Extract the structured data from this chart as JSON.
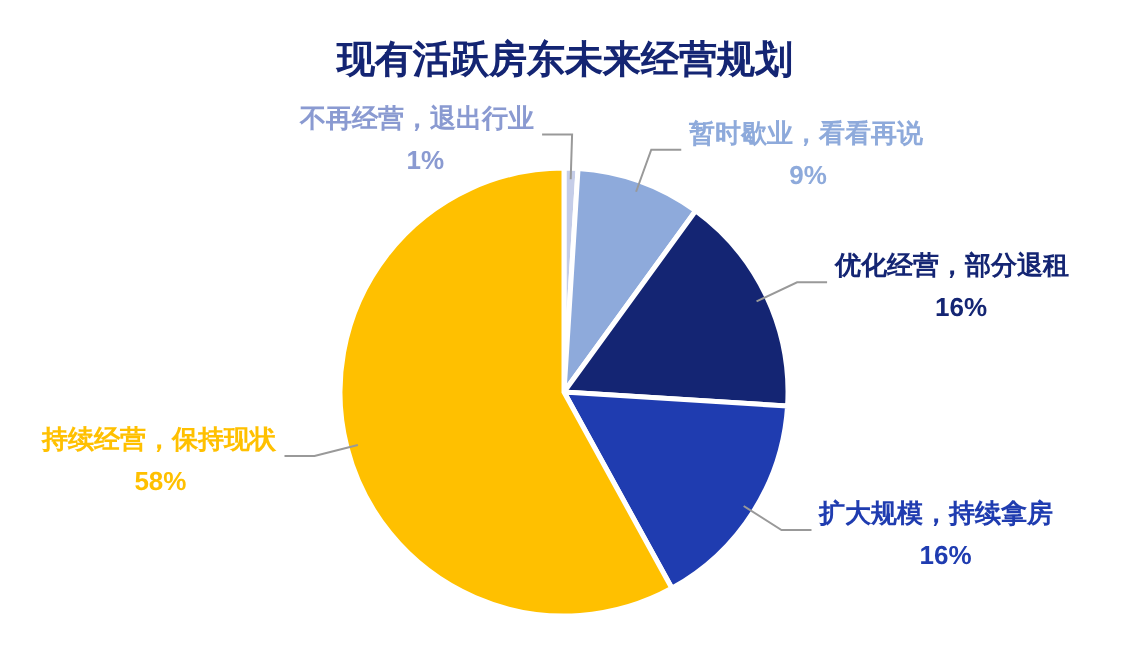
{
  "chart_data": {
    "type": "pie",
    "title": "现有活跃房东未来经营规划",
    "categories": [
      "不再经营，退出行业",
      "暂时歇业，看看再说",
      "优化经营，部分退租",
      "扩大规模，持续拿房",
      "持续经营，保持现状"
    ],
    "values": [
      1,
      9,
      16,
      16,
      58
    ],
    "value_labels": [
      "1%",
      "9%",
      "16%",
      "16%",
      "58%"
    ],
    "colors": [
      "#c5cde8",
      "#8eaadb",
      "#142573",
      "#1f3cb0",
      "#ffc000"
    ]
  }
}
